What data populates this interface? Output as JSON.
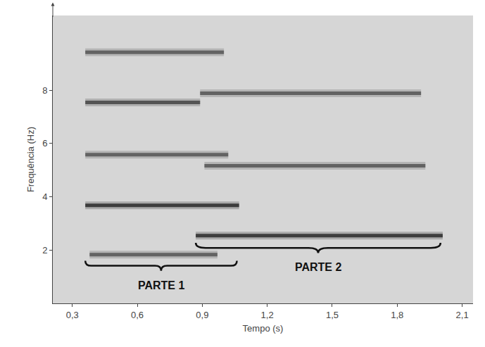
{
  "chart_data": {
    "type": "line",
    "x_label": "Tempo (s)",
    "y_label": "Frequência (Hz)",
    "xlim": [
      0.21,
      2.15
    ],
    "ylim": [
      0,
      10.8
    ],
    "xticks": [
      {
        "value": 0.3,
        "label": "0,3"
      },
      {
        "value": 0.6,
        "label": "0,6"
      },
      {
        "value": 0.9,
        "label": "0,9"
      },
      {
        "value": 1.2,
        "label": "1,2"
      },
      {
        "value": 1.5,
        "label": "1,5"
      },
      {
        "value": 1.8,
        "label": "1,8"
      },
      {
        "value": 2.1,
        "label": "2,1"
      }
    ],
    "yticks": [
      2,
      4,
      6,
      8
    ],
    "grid": false,
    "series": [
      {
        "color": "#555555",
        "line_style": "solid",
        "x": [
          0.38,
          0.97
        ],
        "values": [
          1.83,
          1.83
        ]
      },
      {
        "color": "#2a2a2a",
        "line_style": "solid",
        "x": [
          0.36,
          1.07
        ],
        "values": [
          3.68,
          3.68
        ]
      },
      {
        "color": "#555555",
        "line_style": "solid",
        "x": [
          0.36,
          1.02
        ],
        "values": [
          5.58,
          5.58
        ]
      },
      {
        "color": "#444444",
        "line_style": "solid",
        "x": [
          0.36,
          0.89
        ],
        "values": [
          7.54,
          7.54
        ]
      },
      {
        "color": "#555555",
        "line_style": "solid",
        "x": [
          0.36,
          1.0
        ],
        "values": [
          9.42,
          9.42
        ]
      },
      {
        "color": "#2a2a2a",
        "line_style": "solid",
        "x": [
          0.87,
          2.01
        ],
        "values": [
          2.54,
          2.54
        ]
      },
      {
        "color": "#555555",
        "line_style": "solid",
        "x": [
          0.91,
          1.93
        ],
        "values": [
          5.16,
          5.16
        ]
      },
      {
        "color": "#555555",
        "line_style": "solid",
        "x": [
          0.89,
          1.91
        ],
        "values": [
          7.88,
          7.88
        ]
      }
    ],
    "annotations": [
      {
        "text": "PARTE 1",
        "x": [
          0.36,
          1.06
        ],
        "y": 1.6
      },
      {
        "text": "PARTE 2",
        "x": [
          0.87,
          2.0
        ],
        "y": 2.27
      }
    ]
  }
}
